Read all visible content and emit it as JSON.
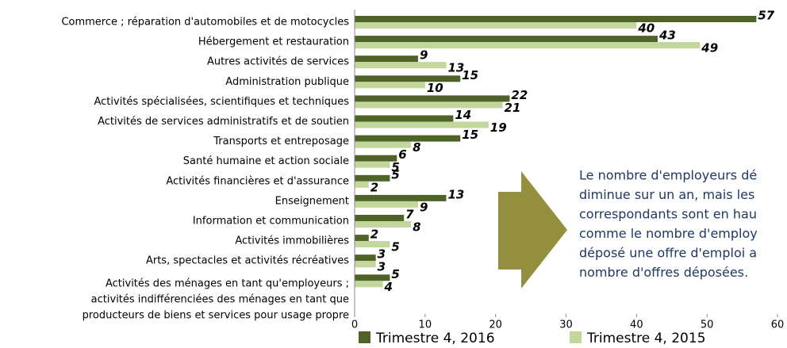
{
  "chart_data": {
    "type": "bar",
    "orientation": "horizontal",
    "categories": [
      "Commerce ; réparation d'automobiles et de motocycles",
      "Hébergement et restauration",
      "Autres activités de services",
      "Administration publique",
      "Activités spécialisées, scientifiques et techniques",
      "Activités de services administratifs et de soutien",
      "Transports et entreposage",
      "Santé humaine et action sociale",
      "Activités financières et d'assurance",
      "Enseignement",
      "Information et communication",
      "Activités immobilières",
      "Arts, spectacles et activités récréatives",
      "Activités des ménages en tant qu'employeurs ;\nactivités indifférenciées des ménages en tant que\nproducteurs de biens et services pour usage propre"
    ],
    "series": [
      {
        "name": "Trimestre 4, 2016",
        "color": "#4f6228",
        "values": [
          57,
          43,
          9,
          15,
          22,
          14,
          15,
          6,
          5,
          13,
          7,
          2,
          3,
          5
        ]
      },
      {
        "name": "Trimestre 4, 2015",
        "color": "#c3d69b",
        "values": [
          40,
          49,
          13,
          10,
          21,
          19,
          8,
          5,
          2,
          9,
          8,
          5,
          3,
          4
        ]
      }
    ],
    "xlim": [
      0,
      60
    ],
    "xticks": [
      0,
      10,
      20,
      30,
      40,
      50,
      60
    ],
    "annotation": [
      "Le nombre d'employeurs dé",
      "diminue sur un an, mais les",
      "correspondants sont en hau",
      "comme le nombre d'employ",
      "déposé une offre d'emploi a",
      "nombre d'offres déposées."
    ]
  }
}
